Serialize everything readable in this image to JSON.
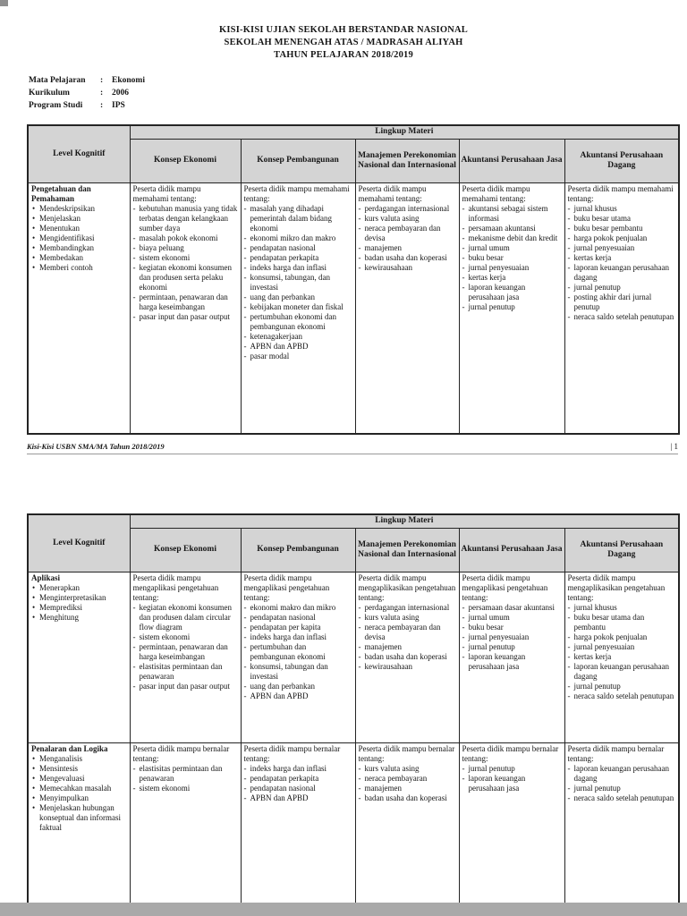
{
  "header": {
    "title_lines": [
      "KISI-KISI UJIAN SEKOLAH BERSTANDAR NASIONAL",
      "SEKOLAH MENENGAH ATAS / MADRASAH ALIYAH",
      "TAHUN PELAJARAN 2018/2019"
    ]
  },
  "meta": {
    "rows": [
      {
        "label": "Mata Pelajaran",
        "colon": ":",
        "value": "Ekonomi"
      },
      {
        "label": "Kurikulum",
        "colon": ":",
        "value": "2006"
      },
      {
        "label": "Program Studi",
        "colon": ":",
        "value": "IPS"
      }
    ]
  },
  "table_header": {
    "level_kognitif": "Level Kognitif",
    "lingkup_materi": "Lingkup Materi",
    "columns": [
      "Konsep Ekonomi",
      "Konsep Pembangunan",
      "Manajemen Perekonomian Nasional dan Internasional",
      "Akuntansi Perusahaan Jasa",
      "Akuntansi Perusahaan Dagang"
    ]
  },
  "tables": [
    {
      "rows": [
        {
          "level": {
            "title": "Pengetahuan dan Pemahaman",
            "bullets": [
              "Mendeskripsikan",
              "Menjelaskan",
              "Menentukan",
              "Mengidentifikasi",
              "Membandingkan",
              "Membedakan",
              "Memberi contoh"
            ]
          },
          "cells": [
            {
              "intro": "Peserta didik mampu memahami tentang:",
              "items": [
                "kebutuhan manusia yang tidak terbatas dengan kelangkaan sumber daya",
                "masalah pokok ekonomi",
                "biaya peluang",
                "sistem ekonomi",
                "kegiatan ekonomi konsumen dan produsen serta pelaku ekonomi",
                "permintaan, penawaran dan harga keseimbangan",
                "pasar input dan pasar output"
              ]
            },
            {
              "intro": "Peserta didik mampu memahami tentang:",
              "items": [
                "masalah yang dihadapi pemerintah dalam bidang ekonomi",
                "ekonomi mikro dan makro",
                "pendapatan nasional",
                "pendapatan perkapita",
                "indeks harga dan inflasi",
                "konsumsi, tabungan, dan investasi",
                "uang dan perbankan",
                "kebijakan moneter dan fiskal",
                "pertumbuhan ekonomi dan pembangunan ekonomi",
                "ketenagakerjaan",
                "APBN dan APBD",
                "pasar modal"
              ]
            },
            {
              "intro": "Peserta didik mampu memahami tentang:",
              "items": [
                "perdagangan internasional",
                "kurs valuta asing",
                "neraca pembayaran dan devisa",
                "manajemen",
                "badan usaha dan koperasi",
                "kewirausahaan"
              ]
            },
            {
              "intro": "Peserta didik mampu memahami tentang:",
              "items": [
                "akuntansi sebagai sistem informasi",
                "persamaan akuntansi",
                "mekanisme debit dan kredit",
                "jurnal umum",
                "buku besar",
                "jurnal penyesuaian",
                "kertas kerja",
                "laporan keuangan perusahaan jasa",
                "jurnal penutup"
              ]
            },
            {
              "intro": "Peserta didik mampu memahami tentang:",
              "items": [
                "jurnal khusus",
                "buku besar utama",
                "buku besar pembantu",
                "harga pokok penjualan",
                "jurnal penyesuaian",
                "kertas kerja",
                "laporan keuangan perusahaan dagang",
                "jurnal penutup",
                "posting akhir dari jurnal penutup",
                "neraca saldo setelah penutupan"
              ]
            }
          ]
        }
      ]
    },
    {
      "rows": [
        {
          "level": {
            "title": "Aplikasi",
            "bullets": [
              "Menerapkan",
              "Menginterpretasikan",
              "Memprediksi",
              "Menghitung"
            ]
          },
          "cells": [
            {
              "intro": "Peserta didik mampu mengaplikasi pengetahuan tentang:",
              "items": [
                "kegiatan ekonomi konsumen dan produsen dalam circular flow diagram",
                "sistem ekonomi",
                "permintaan, penawaran dan harga keseimbangan",
                "elastisitas permintaan dan penawaran",
                "pasar input dan pasar output"
              ]
            },
            {
              "intro": "Peserta didik mampu mengaplikasi pengetahuan tentang:",
              "items": [
                "ekonomi makro dan mikro",
                "pendapatan nasional",
                "pendapatan per kapita",
                "indeks harga dan inflasi",
                "pertumbuhan dan pembangunan ekonomi",
                "konsumsi, tabungan dan investasi",
                "uang dan perbankan",
                "APBN dan APBD"
              ]
            },
            {
              "intro": "Peserta didik mampu mengaplikasikan pengetahuan tentang:",
              "items": [
                "perdagangan internasional",
                "kurs valuta asing",
                "neraca pembayaran dan devisa",
                "manajemen",
                "badan usaha dan koperasi",
                "kewirausahaan"
              ]
            },
            {
              "intro": "Peserta didik mampu mengaplikasi pengetahuan tentang:",
              "items": [
                "persamaan dasar akuntansi",
                "jurnal umum",
                "buku besar",
                "jurnal penyesuaian",
                "jurnal penutup",
                "laporan keuangan perusahaan jasa"
              ]
            },
            {
              "intro": "Peserta didik mampu mengaplikasikan pengetahuan tentang:",
              "items": [
                "jurnal khusus",
                "buku besar utama dan pembantu",
                "harga pokok penjualan",
                "jurnal penyesuaian",
                "kertas kerja",
                "laporan keuangan perusahaan dagang",
                "jurnal penutup",
                "neraca saldo setelah penutupan"
              ]
            }
          ]
        },
        {
          "level": {
            "title": "Penalaran dan Logika",
            "bullets": [
              "Menganalisis",
              "Mensintesis",
              "Mengevaluasi",
              "Memecahkan masalah",
              "Menyimpulkan",
              "Menjelaskan hubungan konseptual dan informasi faktual"
            ]
          },
          "cells": [
            {
              "intro": "Peserta didik mampu bernalar tentang:",
              "items": [
                "elastisitas permintaan dan penawaran",
                "sistem ekonomi"
              ]
            },
            {
              "intro": "Peserta didik mampu bernalar tentang:",
              "items": [
                "indeks harga dan inflasi",
                "pendapatan perkapita",
                "pendapatan nasional",
                "APBN dan APBD"
              ]
            },
            {
              "intro": "Peserta didik mampu bernalar tentang:",
              "items": [
                "kurs valuta asing",
                "neraca pembayaran",
                "manajemen",
                "badan usaha dan koperasi"
              ]
            },
            {
              "intro": "Peserta didik mampu bernalar tentang:",
              "items": [
                "jurnal penutup",
                "laporan keuangan perusahaan jasa"
              ]
            },
            {
              "intro": "Peserta didik mampu bernalar tentang:",
              "items": [
                "laporan keuangan perusahaan dagang",
                "jurnal penutup",
                "neraca saldo setelah penutupan"
              ]
            }
          ]
        }
      ]
    }
  ],
  "footer": {
    "left": "Kisi-Kisi USBN SMA/MA Tahun 2018/2019",
    "right": "| 1"
  },
  "colors": {
    "page_bg": "#ffffff",
    "header_cell_bg": "#d4d4d4",
    "border": "#242424",
    "viewer_strip": "#a9a9a9"
  }
}
